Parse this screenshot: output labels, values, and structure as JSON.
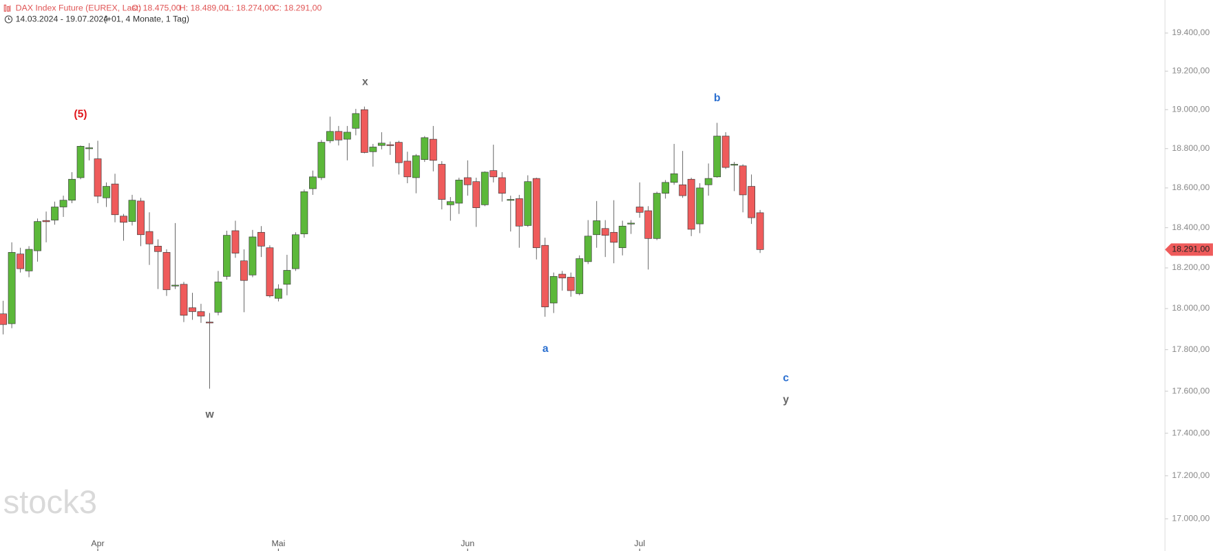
{
  "chart_data": {
    "type": "candlestick",
    "title": "DAX Index Future (EUREX, Last)",
    "ohlc_labels": [
      "O: 18.475,00",
      "H: 18.489,00",
      "L: 18.274,00",
      "C: 18.291,00"
    ],
    "subtitle": "14.03.2024 - 19.07.2024",
    "subtitle_note": "(+01, 4 Monate, 1 Tag)",
    "watermark": "stock3",
    "categories": [
      null,
      null,
      null,
      null,
      null,
      null,
      null,
      null,
      null,
      null,
      null,
      "Apr",
      null,
      null,
      null,
      null,
      null,
      null,
      null,
      null,
      null,
      null,
      null,
      null,
      null,
      null,
      null,
      null,
      null,
      null,
      null,
      null,
      "Mai",
      null,
      null,
      null,
      null,
      null,
      null,
      null,
      null,
      null,
      null,
      null,
      null,
      null,
      null,
      null,
      null,
      null,
      null,
      null,
      null,
      null,
      "Jun",
      null,
      null,
      null,
      null,
      null,
      null,
      null,
      null,
      null,
      null,
      null,
      null,
      null,
      null,
      null,
      null,
      null,
      null,
      null,
      "Jul",
      null,
      null,
      null,
      null,
      null,
      null,
      null,
      null,
      null,
      null,
      null,
      null,
      null,
      null
    ],
    "open": [
      17974,
      17926,
      18269,
      18185,
      18285,
      18436,
      18438,
      18504,
      18538,
      18652,
      18800,
      18748,
      18550,
      18620,
      18458,
      18431,
      18534,
      18381,
      18308,
      18277,
      18111,
      18119,
      18004,
      17985,
      17934,
      17982,
      18158,
      18385,
      18235,
      18165,
      18377,
      18300,
      18050,
      18119,
      18196,
      18369,
      18596,
      18652,
      18840,
      18888,
      18848,
      18904,
      19000,
      18784,
      18816,
      18820,
      18832,
      18736,
      18652,
      18744,
      18848,
      18720,
      18515,
      18523,
      18652,
      18632,
      18515,
      18688,
      18652,
      18538,
      18546,
      18411,
      18648,
      18312,
      18027,
      18169,
      18154,
      18073,
      18231,
      18365,
      18396,
      18377,
      18300,
      18419,
      18504,
      18485,
      18346,
      18573,
      18628,
      18616,
      18644,
      18419,
      18616,
      18656,
      18864,
      18716,
      18712,
      18608,
      18475
    ],
    "high": [
      18038,
      18327,
      18300,
      18308,
      18446,
      18481,
      18531,
      18561,
      18680,
      18816,
      18828,
      18840,
      18628,
      18672,
      18469,
      18565,
      18550,
      18477,
      18342,
      18292,
      18423,
      18131,
      18077,
      18023,
      17978,
      18185,
      18385,
      18435,
      18292,
      18389,
      18408,
      18312,
      18119,
      18265,
      18377,
      18592,
      18688,
      18844,
      18964,
      18916,
      18916,
      19004,
      19016,
      18824,
      18884,
      18836,
      18840,
      18784,
      18772,
      18864,
      18916,
      18736,
      18554,
      18652,
      18740,
      18652,
      18684,
      18820,
      18680,
      18561,
      18565,
      18664,
      18652,
      18350,
      18177,
      18185,
      18177,
      18262,
      18438,
      18534,
      18438,
      18538,
      18435,
      18438,
      18628,
      18508,
      18581,
      18640,
      18824,
      18788,
      18652,
      18624,
      18724,
      18932,
      18884,
      18732,
      18720,
      18668,
      18489
    ],
    "low": [
      17874,
      17904,
      18177,
      18154,
      18231,
      18327,
      18415,
      18454,
      18523,
      18644,
      18740,
      18523,
      18504,
      18427,
      18335,
      18411,
      18308,
      18215,
      18096,
      18062,
      18096,
      17934,
      17945,
      17930,
      17612,
      17967,
      18142,
      18250,
      17982,
      18154,
      18254,
      18054,
      18035,
      18065,
      18185,
      18350,
      18565,
      18640,
      18828,
      18816,
      18740,
      18868,
      18776,
      18708,
      18796,
      18768,
      18668,
      18624,
      18573,
      18732,
      18684,
      18492,
      18435,
      18469,
      18561,
      18404,
      18508,
      18628,
      18531,
      18381,
      18300,
      18404,
      18242,
      17960,
      17978,
      18088,
      18058,
      18065,
      18219,
      18300,
      18254,
      18223,
      18262,
      18369,
      18450,
      18192,
      18338,
      18546,
      18616,
      18550,
      18358,
      18373,
      18561,
      18652,
      18696,
      18584,
      18477,
      18419,
      18274
    ],
    "close": [
      17922,
      18277,
      18196,
      18292,
      18431,
      18430,
      18504,
      18538,
      18644,
      18812,
      18804,
      18558,
      18608,
      18465,
      18427,
      18538,
      18365,
      18319,
      18281,
      18092,
      18115,
      17967,
      17985,
      17963,
      17930,
      18131,
      18362,
      18273,
      18138,
      18354,
      18308,
      18062,
      18096,
      18188,
      18365,
      18581,
      18656,
      18832,
      18888,
      18844,
      18884,
      18980,
      18780,
      18808,
      18828,
      18816,
      18728,
      18656,
      18764,
      18856,
      18740,
      18542,
      18531,
      18640,
      18616,
      18500,
      18680,
      18656,
      18573,
      18542,
      18408,
      18632,
      18300,
      18008,
      18158,
      18150,
      18088,
      18246,
      18358,
      18435,
      18362,
      18327,
      18408,
      18423,
      18477,
      18346,
      18573,
      18628,
      18672,
      18561,
      18392,
      18600,
      18648,
      18864,
      18704,
      18720,
      18565,
      18450,
      18291
    ],
    "last_label": "18.291,00",
    "up_color": "#5cb83a",
    "down_color": "#ef5b5b",
    "log_scale": true,
    "ylim": [
      16930,
      19575
    ],
    "yticks": [
      {
        "value": 19400,
        "label": "19.400,00"
      },
      {
        "value": 19200,
        "label": "19.200,00"
      },
      {
        "value": 19000,
        "label": "19.000,00"
      },
      {
        "value": 18800,
        "label": "18.800,00"
      },
      {
        "value": 18600,
        "label": "18.600,00"
      },
      {
        "value": 18400,
        "label": "18.400,00"
      },
      {
        "value": 18200,
        "label": "18.200,00"
      },
      {
        "value": 18000,
        "label": "18.000,00"
      },
      {
        "value": 17800,
        "label": "17.800,00"
      },
      {
        "value": 17600,
        "label": "17.600,00"
      },
      {
        "value": 17400,
        "label": "17.400,00"
      },
      {
        "value": 17200,
        "label": "17.200,00"
      },
      {
        "value": 17000,
        "label": "17.000,00"
      }
    ],
    "annotations": [
      {
        "text": "(5)",
        "color": "#e0161b"
      },
      {
        "text": "w",
        "color": "#666666"
      },
      {
        "text": "x",
        "color": "#666666"
      },
      {
        "text": "a",
        "color": "#2a6fd0"
      },
      {
        "text": "b",
        "color": "#2a6fd0"
      },
      {
        "text": "c",
        "color": "#2a6fd0"
      },
      {
        "text": "y",
        "color": "#666666"
      }
    ]
  }
}
